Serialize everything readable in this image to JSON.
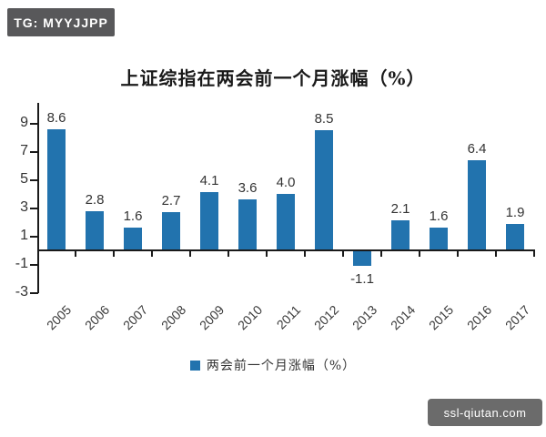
{
  "watermarks": {
    "top_left": "TG: MYYJJPP",
    "bottom_right": "ssl-qiutan.com"
  },
  "chart_data": {
    "type": "bar",
    "title": "上证综指在两会前一个月涨幅（%）",
    "categories": [
      "2005",
      "2006",
      "2007",
      "2008",
      "2009",
      "2010",
      "2011",
      "2012",
      "2013",
      "2014",
      "2015",
      "2016",
      "2017"
    ],
    "values": [
      8.6,
      2.8,
      1.6,
      2.7,
      4.1,
      3.6,
      4.0,
      8.5,
      -1.1,
      2.1,
      1.6,
      6.4,
      1.9
    ],
    "series_name": "两会前一个月涨幅（%）",
    "legend": {
      "label": "两会前一个月涨幅（%）",
      "position": "bottom"
    },
    "xlabel": "",
    "ylabel": "",
    "ylim": [
      -3,
      9
    ],
    "yticks": [
      9,
      7,
      5,
      3,
      1,
      -1,
      -3
    ],
    "grid": false,
    "bar_color": "#2273ae"
  },
  "colors": {
    "bar": "#2273ae",
    "axis": "#1a1a1a",
    "text": "#333333",
    "badge_dark": "#58585a",
    "badge_gray": "#6b6b6b"
  }
}
